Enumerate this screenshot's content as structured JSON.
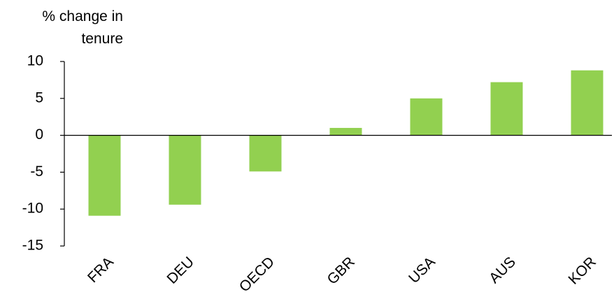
{
  "chart_data": {
    "type": "bar",
    "y_label": "% change in tenure",
    "categories": [
      "FRA",
      "DEU",
      "OECD",
      "GBR",
      "USA",
      "AUS",
      "KOR"
    ],
    "values": [
      -10.9,
      -9.4,
      -4.9,
      1.0,
      5.0,
      7.2,
      8.8
    ],
    "color": "#92d050",
    "ylim": [
      -15,
      10
    ],
    "yticks": [
      -15,
      -10,
      -5,
      0,
      5,
      10
    ],
    "grid": false
  }
}
